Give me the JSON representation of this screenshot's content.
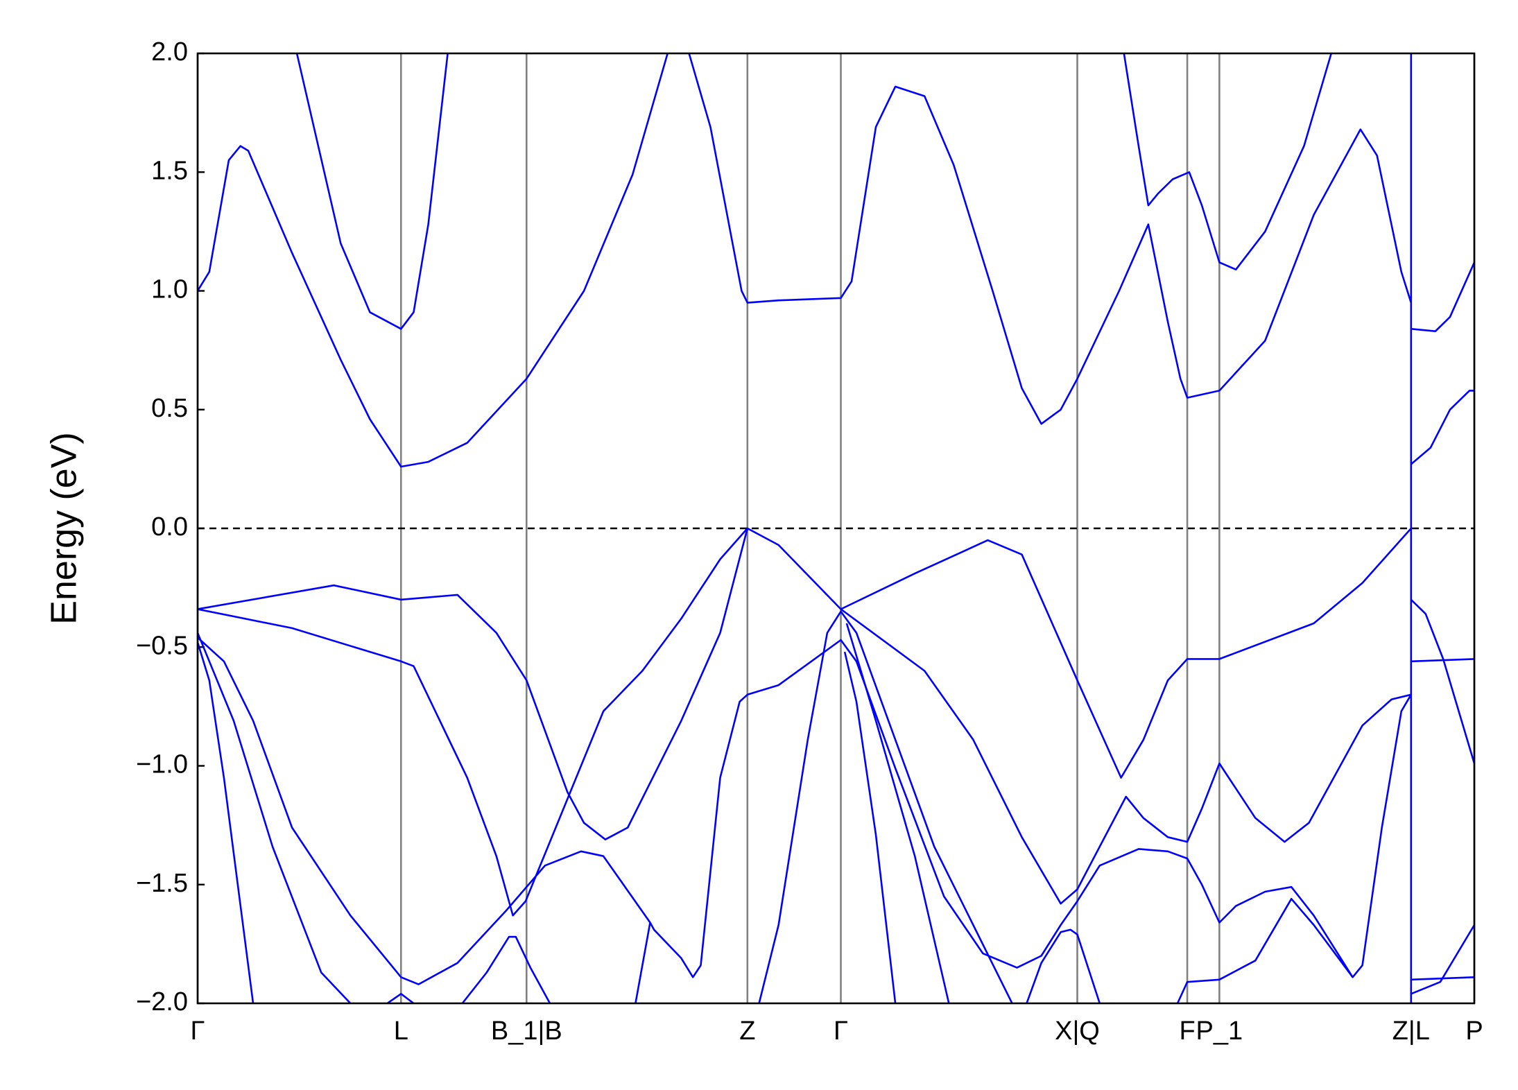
{
  "chart_data": {
    "type": "line",
    "ylabel": "Energy (eV)",
    "color": "#0000ff",
    "grid_color": "#808080",
    "xgrid": true,
    "fermi_level": 0,
    "xlim": [
      0,
      13.12
    ],
    "ylim": [
      -2.0,
      2.0
    ],
    "yticks": [
      {
        "value": 2.0,
        "label": "2.0"
      },
      {
        "value": 1.5,
        "label": "1.5"
      },
      {
        "value": 1.0,
        "label": "1.0"
      },
      {
        "value": 0.5,
        "label": "0.5"
      },
      {
        "value": 0.0,
        "label": "0.0"
      },
      {
        "value": -0.5,
        "label": "−0.5"
      },
      {
        "value": -1.0,
        "label": "−1.0"
      },
      {
        "value": -1.5,
        "label": "−1.5"
      },
      {
        "value": -2.0,
        "label": "−2.0"
      }
    ],
    "xticks": [
      {
        "value": 0,
        "label": "Γ"
      },
      {
        "value": 2.09,
        "label": "L"
      },
      {
        "value": 3.38,
        "label": "B_1|B"
      },
      {
        "value": 5.65,
        "label": "Z"
      },
      {
        "value": 6.61,
        "label": "Γ"
      },
      {
        "value": 9.04,
        "label": "X|Q"
      },
      {
        "value": 10.17,
        "label": "F"
      },
      {
        "value": 10.5,
        "label": "P_1"
      },
      {
        "value": 12.47,
        "label": "Z|L"
      },
      {
        "value": 13.12,
        "label": "P"
      }
    ],
    "series": [
      {
        "x": [
          0,
          1.4,
          2.09,
          2.67,
          3.07,
          3.38,
          3.8,
          3.97,
          4.19,
          4.42,
          4.97,
          5.37,
          5.65,
          5.97,
          6.61,
          7.37,
          8.12,
          8.47,
          9.04,
          9.49,
          9.72,
          9.97,
          10.17,
          10.5,
          11.47,
          11.97,
          12.47
        ],
        "values": [
          -0.34,
          -0.24,
          -0.3,
          -0.28,
          -0.44,
          -0.64,
          -1.11,
          -1.24,
          -1.31,
          -1.26,
          -0.81,
          -0.44,
          0,
          -0.07,
          -0.34,
          -0.19,
          -0.05,
          -0.11,
          -0.64,
          -1.05,
          -0.89,
          -0.64,
          -0.55,
          -0.55,
          -0.4,
          -0.23,
          0
        ]
      },
      {
        "x": [
          0,
          0.97,
          2.09,
          2.22,
          2.77,
          3.07,
          3.24,
          3.37,
          3.8,
          4.17,
          4.57,
          4.97,
          5.37,
          5.65
        ],
        "values": [
          -0.34,
          -0.42,
          -0.56,
          -0.58,
          -1.05,
          -1.38,
          -1.63,
          -1.57,
          -1.14,
          -0.77,
          -0.6,
          -0.38,
          -0.13,
          0
        ]
      },
      {
        "x": [
          0,
          0.27,
          0.57,
          0.97,
          1.57,
          2.09,
          2.27,
          2.67,
          3.17,
          3.57,
          3.94,
          4.17,
          4.65,
          4.69,
          4.97,
          5.09,
          5.17,
          5.37,
          5.57,
          5.65,
          5.97,
          6.61,
          6.77,
          7.17,
          7.67,
          8.07,
          8.42,
          8.67,
          8.87,
          9.04,
          9.27,
          9.67,
          9.97,
          10.17,
          10.32,
          10.5,
          10.67,
          10.97,
          11.24,
          11.47,
          11.87,
          11.97,
          12.17,
          12.37,
          12.47
        ],
        "values": [
          -0.46,
          -0.56,
          -0.81,
          -1.26,
          -1.63,
          -1.89,
          -1.92,
          -1.83,
          -1.61,
          -1.42,
          -1.36,
          -1.38,
          -1.66,
          -1.69,
          -1.81,
          -1.89,
          -1.84,
          -1.05,
          -0.73,
          -0.7,
          -0.66,
          -0.47,
          -0.56,
          -1.01,
          -1.55,
          -1.79,
          -1.85,
          -1.8,
          -1.67,
          -1.57,
          -1.42,
          -1.35,
          -1.36,
          -1.39,
          -1.5,
          -1.66,
          -1.59,
          -1.53,
          -1.51,
          -1.63,
          -1.89,
          -1.84,
          -1.26,
          -0.77,
          -0.7
        ]
      },
      {
        "x": [
          4.5,
          4.65
        ],
        "values": [
          -2.0,
          -1.66
        ]
      },
      {
        "x": [
          6.61,
          7.47,
          7.97,
          8.47,
          8.87,
          9.04,
          9.27,
          9.54,
          9.72,
          9.97,
          10.17,
          10.32,
          10.5,
          10.87,
          11.17,
          11.42,
          11.97,
          12.27,
          12.47
        ],
        "values": [
          -0.34,
          -0.6,
          -0.89,
          -1.3,
          -1.58,
          -1.52,
          -1.34,
          -1.13,
          -1.22,
          -1.3,
          -1.32,
          -1.18,
          -0.99,
          -1.22,
          -1.32,
          -1.24,
          -0.83,
          -0.72,
          -0.7
        ]
      },
      {
        "x": [
          5.77,
          5.97,
          6.27,
          6.47,
          6.61,
          6.77,
          7.17,
          7.57,
          7.97,
          8.37
        ],
        "values": [
          -2.0,
          -1.67,
          -0.89,
          -0.44,
          -0.35,
          -0.44,
          -0.89,
          -1.34,
          -1.67,
          -2.0
        ]
      },
      {
        "x": [
          6.65,
          6.77,
          6.97,
          7.17
        ],
        "values": [
          -0.52,
          -0.73,
          -1.29,
          -2.0
        ]
      },
      {
        "x": [
          6.67,
          6.97,
          7.37,
          7.72
        ],
        "values": [
          -0.4,
          -0.81,
          -1.38,
          -2.0
        ]
      },
      {
        "x": [
          0,
          0.12,
          0.27,
          0.57
        ],
        "values": [
          -0.48,
          -0.64,
          -1.05,
          -2.0
        ]
      },
      {
        "x": [
          0,
          0.37,
          0.77,
          1.27,
          1.57
        ],
        "values": [
          -0.44,
          -0.81,
          -1.34,
          -1.87,
          -2.0
        ]
      },
      {
        "x": [
          1.95,
          2.09,
          2.22
        ],
        "values": [
          -2.0,
          -1.96,
          -2.0
        ]
      },
      {
        "x": [
          2.72,
          2.97,
          3.2,
          3.27,
          3.42,
          3.62
        ],
        "values": [
          -2.0,
          -1.87,
          -1.72,
          -1.72,
          -1.85,
          -2.0
        ]
      },
      {
        "x": [
          8.52,
          8.67,
          8.87,
          8.97,
          9.04,
          9.27
        ],
        "values": [
          -2.0,
          -1.83,
          -1.7,
          -1.69,
          -1.71,
          -2.0
        ]
      },
      {
        "x": [
          10.07,
          10.17,
          10.5,
          10.87,
          11.24,
          11.47,
          11.87
        ],
        "values": [
          -2.0,
          -1.91,
          -1.9,
          -1.82,
          -1.56,
          -1.67,
          -1.89
        ]
      },
      {
        "x": [
          12.47,
          12.47
        ],
        "values": [
          2.0,
          -2.0
        ]
      },
      {
        "x": [
          12.47,
          12.62,
          12.8,
          13.12
        ],
        "values": [
          -0.3,
          -0.36,
          -0.55,
          -0.99
        ]
      },
      {
        "x": [
          12.47,
          13.12
        ],
        "values": [
          -0.56,
          -0.55
        ]
      },
      {
        "x": [
          12.47,
          13.12
        ],
        "values": [
          -1.9,
          -1.89
        ]
      },
      {
        "x": [
          12.47,
          12.77,
          13.12
        ],
        "values": [
          -1.96,
          -1.91,
          -1.67
        ]
      },
      {
        "x": [
          0,
          0.12,
          0.32,
          0.44,
          0.52,
          0.97,
          1.47,
          1.77,
          2.09,
          2.37,
          2.77,
          3.38,
          3.97,
          4.47,
          4.83
        ],
        "values": [
          1.0,
          1.08,
          1.55,
          1.61,
          1.59,
          1.16,
          0.71,
          0.46,
          0.26,
          0.28,
          0.36,
          0.63,
          1.0,
          1.49,
          2.0
        ]
      },
      {
        "x": [
          1.02,
          1.47,
          1.77,
          2.09,
          2.22,
          2.37,
          2.57
        ],
        "values": [
          2.0,
          1.2,
          0.91,
          0.84,
          0.91,
          1.28,
          2.0
        ]
      },
      {
        "x": [
          5.05,
          5.27,
          5.59,
          5.65,
          5.97,
          6.61,
          6.72,
          6.97,
          7.17,
          7.47,
          7.77,
          8.17,
          8.47,
          8.67,
          8.87,
          9.04,
          9.47,
          9.77,
          9.97,
          10.1,
          10.17,
          10.5,
          10.97,
          11.47,
          11.95,
          12.12,
          12.37,
          12.47
        ],
        "values": [
          2.0,
          1.69,
          1.0,
          0.95,
          0.96,
          0.97,
          1.04,
          1.69,
          1.86,
          1.82,
          1.53,
          1.0,
          0.59,
          0.44,
          0.5,
          0.63,
          1.0,
          1.28,
          0.87,
          0.63,
          0.55,
          0.58,
          0.79,
          1.32,
          1.68,
          1.57,
          1.08,
          0.95
        ]
      },
      {
        "x": [
          9.52,
          9.67,
          9.77,
          9.87,
          10.02,
          10.19,
          10.32,
          10.5,
          10.67,
          10.97,
          11.37,
          11.65
        ],
        "values": [
          2.0,
          1.61,
          1.36,
          1.41,
          1.47,
          1.5,
          1.36,
          1.12,
          1.09,
          1.25,
          1.61,
          2.0
        ]
      },
      {
        "x": [
          12.47,
          12.67,
          12.87,
          13.07,
          13.12
        ],
        "values": [
          0.27,
          0.34,
          0.5,
          0.58,
          0.58
        ]
      },
      {
        "x": [
          12.47,
          12.72,
          12.87,
          13.12
        ],
        "values": [
          0.84,
          0.83,
          0.89,
          1.12
        ]
      }
    ]
  }
}
